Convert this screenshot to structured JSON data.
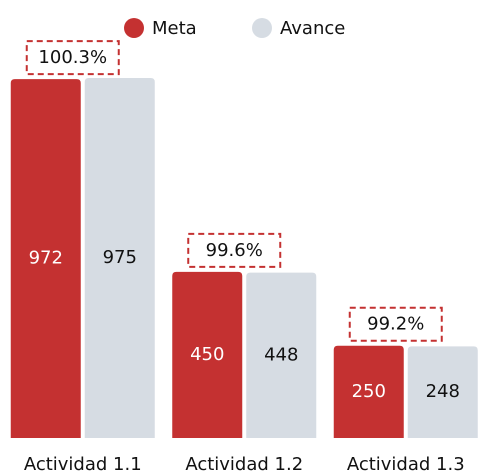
{
  "chart_data": {
    "type": "bar",
    "categories": [
      "Actividad 1.1",
      "Actividad 1.2",
      "Actividad 1.3"
    ],
    "series": [
      {
        "name": "Meta",
        "color": "#c43131",
        "values": [
          972,
          450,
          250
        ]
      },
      {
        "name": "Avance",
        "color": "#d6dce3",
        "values": [
          975,
          448,
          248
        ]
      }
    ],
    "annotations": [
      "100.3%",
      "99.6%",
      "99.2%"
    ]
  }
}
